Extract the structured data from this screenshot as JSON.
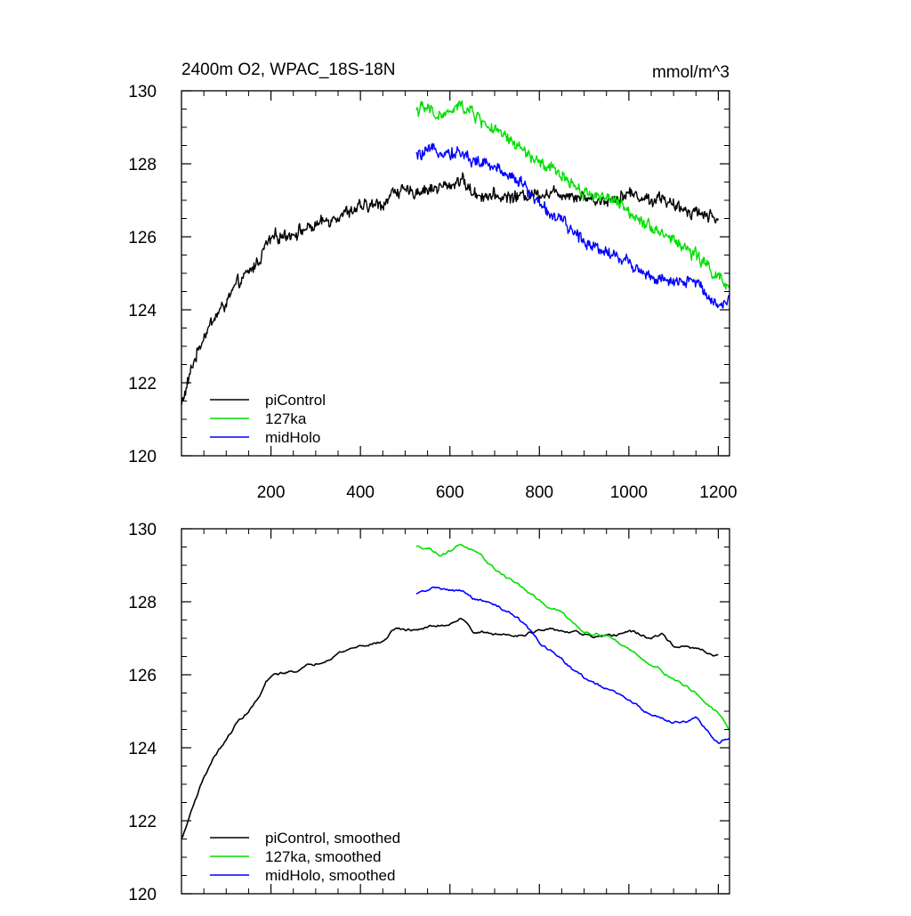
{
  "chart_data": [
    {
      "type": "line",
      "panel": "top",
      "title": "2400m O2, WPAC_18S-18N",
      "units": "mmol/m^3",
      "xlim": [
        0,
        1225
      ],
      "ylim": [
        120,
        130
      ],
      "x_ticks": [
        200,
        400,
        600,
        800,
        1000,
        1200
      ],
      "x_tick_labels": [
        "200",
        "400",
        "600",
        "800",
        "1000",
        "1200"
      ],
      "y_ticks": [
        120,
        122,
        124,
        126,
        128,
        130
      ],
      "y_tick_labels": [
        "120",
        "122",
        "124",
        "126",
        "128",
        "130"
      ],
      "legend_position": "bottom-left",
      "series": [
        {
          "name": "piControl",
          "color": "#000000",
          "x": [
            0,
            10,
            25,
            50,
            75,
            100,
            125,
            150,
            175,
            190,
            210,
            250,
            300,
            350,
            400,
            450,
            480,
            500,
            550,
            600,
            625,
            650,
            700,
            750,
            800,
            850,
            900,
            925,
            950,
            1000,
            1050,
            1075,
            1100,
            1150,
            1200
          ],
          "y": [
            121.4,
            121.8,
            122.5,
            123.3,
            123.8,
            124.2,
            124.7,
            125.0,
            125.4,
            125.8,
            126.0,
            126.1,
            126.3,
            126.6,
            126.8,
            126.9,
            127.3,
            127.2,
            127.3,
            127.4,
            127.6,
            127.2,
            127.1,
            127.1,
            127.2,
            127.2,
            127.1,
            127.0,
            127.0,
            127.2,
            127.0,
            127.1,
            126.8,
            126.7,
            126.5
          ]
        },
        {
          "name": "127ka",
          "color": "#00e000",
          "x": [
            525,
            550,
            575,
            600,
            625,
            650,
            700,
            750,
            800,
            850,
            900,
            950,
            1000,
            1050,
            1100,
            1150,
            1200,
            1225
          ],
          "y": [
            129.5,
            129.5,
            129.3,
            129.4,
            129.6,
            129.4,
            128.9,
            128.5,
            128.0,
            127.7,
            127.2,
            127.1,
            126.7,
            126.3,
            125.9,
            125.5,
            124.9,
            124.5
          ]
        },
        {
          "name": "midHolo",
          "color": "#0000ff",
          "x": [
            525,
            550,
            575,
            600,
            625,
            650,
            700,
            750,
            800,
            850,
            900,
            950,
            1000,
            1050,
            1100,
            1150,
            1200,
            1225
          ],
          "y": [
            128.2,
            128.3,
            128.4,
            128.3,
            128.3,
            128.1,
            127.9,
            127.6,
            126.9,
            126.4,
            125.9,
            125.6,
            125.3,
            124.9,
            124.7,
            124.8,
            124.1,
            124.3
          ]
        }
      ]
    },
    {
      "type": "line",
      "panel": "bottom",
      "xlim": [
        0,
        1225
      ],
      "ylim": [
        120,
        130
      ],
      "y_ticks": [
        120,
        122,
        124,
        126,
        128,
        130
      ],
      "y_tick_labels": [
        "120",
        "122",
        "124",
        "126",
        "128",
        "130"
      ],
      "legend_position": "bottom-left",
      "series": [
        {
          "name": "piControl, smoothed",
          "color": "#000000",
          "x": [
            0,
            10,
            25,
            50,
            75,
            100,
            125,
            150,
            175,
            190,
            210,
            250,
            300,
            350,
            400,
            450,
            480,
            500,
            550,
            600,
            625,
            650,
            700,
            750,
            800,
            850,
            900,
            925,
            950,
            1000,
            1050,
            1075,
            1100,
            1150,
            1200
          ],
          "y": [
            121.5,
            121.8,
            122.4,
            123.2,
            123.8,
            124.2,
            124.7,
            125.0,
            125.4,
            125.8,
            126.0,
            126.1,
            126.3,
            126.6,
            126.8,
            126.9,
            127.3,
            127.2,
            127.3,
            127.4,
            127.6,
            127.2,
            127.1,
            127.1,
            127.2,
            127.2,
            127.1,
            127.0,
            127.0,
            127.2,
            127.0,
            127.1,
            126.8,
            126.7,
            126.5
          ]
        },
        {
          "name": "127ka, smoothed",
          "color": "#00e000",
          "x": [
            525,
            550,
            575,
            600,
            625,
            650,
            700,
            750,
            800,
            850,
            900,
            950,
            1000,
            1050,
            1100,
            1150,
            1200,
            1225
          ],
          "y": [
            129.5,
            129.5,
            129.3,
            129.4,
            129.6,
            129.4,
            128.9,
            128.5,
            128.0,
            127.7,
            127.2,
            127.1,
            126.7,
            126.3,
            125.9,
            125.5,
            124.9,
            124.5
          ]
        },
        {
          "name": "midHolo, smoothed",
          "color": "#0000ff",
          "x": [
            525,
            550,
            575,
            600,
            625,
            650,
            700,
            750,
            800,
            850,
            900,
            950,
            1000,
            1050,
            1100,
            1150,
            1200,
            1225
          ],
          "y": [
            128.2,
            128.3,
            128.4,
            128.3,
            128.3,
            128.1,
            127.9,
            127.6,
            126.9,
            126.4,
            125.9,
            125.6,
            125.3,
            124.9,
            124.7,
            124.8,
            124.1,
            124.3
          ]
        }
      ]
    }
  ]
}
